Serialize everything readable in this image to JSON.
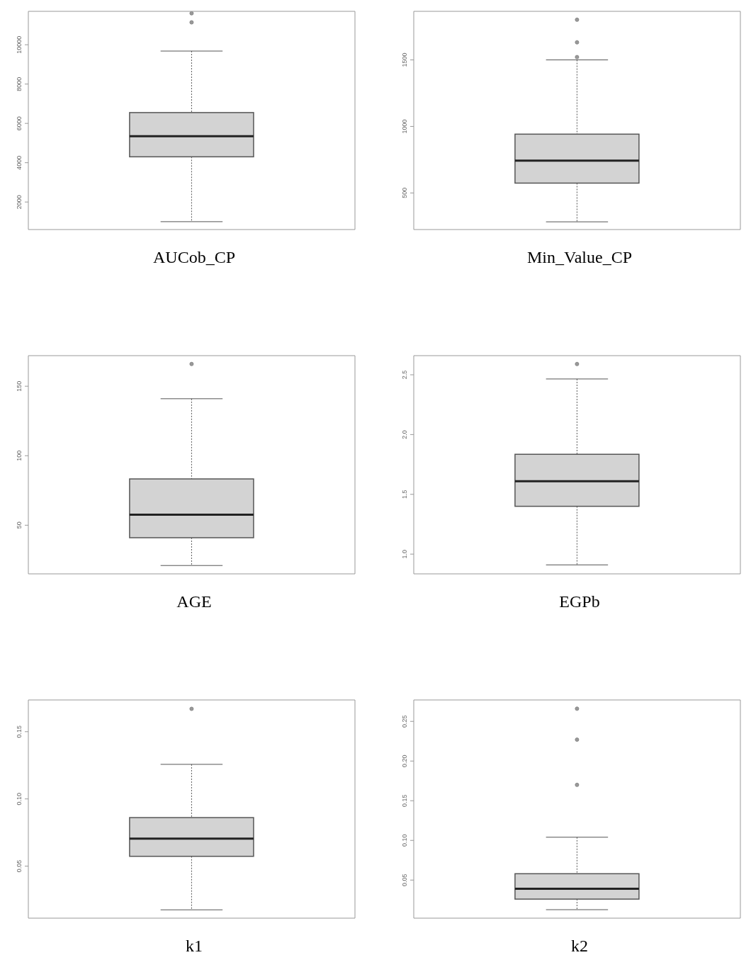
{
  "chart_data": [
    {
      "type": "box",
      "xlabel": "AUCob_CP",
      "categories": [
        null
      ],
      "color": "#d3d3d3",
      "tick_labels": "y",
      "ylim": [
        600,
        11700
      ],
      "yticks": [
        2000,
        4000,
        6000,
        8000,
        10000
      ],
      "boxes": [
        {
          "low": 1000,
          "q1": 4300,
          "median": 5350,
          "q3": 6550,
          "high": 9680,
          "outliers": [
            11140,
            11600
          ]
        }
      ]
    },
    {
      "type": "box",
      "xlabel": "Min_Value_CP",
      "categories": [
        null
      ],
      "color": "#d3d3d3",
      "tick_labels": "y",
      "ylim": [
        225,
        1865
      ],
      "yticks": [
        500,
        1000,
        1500
      ],
      "boxes": [
        {
          "low": 283,
          "q1": 574,
          "median": 743,
          "q3": 942,
          "high": 1500,
          "outliers": [
            1521,
            1632,
            1802
          ]
        }
      ]
    },
    {
      "type": "box",
      "xlabel": "AGE",
      "categories": [
        null
      ],
      "color": "#d3d3d3",
      "tick_labels": "y",
      "ylim": [
        15,
        172
      ],
      "yticks": [
        50,
        100,
        150
      ],
      "boxes": [
        {
          "low": 21,
          "q1": 41,
          "median": 57.6,
          "q3": 83.3,
          "high": 141,
          "outliers": [
            166
          ]
        }
      ]
    },
    {
      "type": "box",
      "xlabel": "EGPb",
      "categories": [
        null
      ],
      "color": "#d3d3d3",
      "tick_labels": "y",
      "ylim": [
        0.835,
        2.66
      ],
      "yticks": [
        {
          "value": 1,
          "label": "1.0"
        },
        1.5,
        {
          "value": 2,
          "label": "2.0"
        },
        2.5
      ],
      "boxes": [
        {
          "low": 0.91,
          "q1": 1.4,
          "median": 1.61,
          "q3": 1.835,
          "high": 2.465,
          "outliers": [
            2.59
          ]
        }
      ]
    },
    {
      "type": "box",
      "xlabel": "k1",
      "categories": [
        null
      ],
      "color": "#d3d3d3",
      "tick_labels": "y",
      "ylim": [
        0.0113,
        0.1736
      ],
      "yticks": [
        0.05,
        {
          "value": 0.1,
          "label": "0.10"
        },
        0.15
      ],
      "boxes": [
        {
          "low": 0.0175,
          "q1": 0.0573,
          "median": 0.0704,
          "q3": 0.0861,
          "high": 0.1257,
          "outliers": [
            0.167
          ]
        }
      ]
    },
    {
      "type": "box",
      "xlabel": "k2",
      "categories": [
        null
      ],
      "color": "#d3d3d3",
      "tick_labels": "y",
      "ylim": [
        0.002,
        0.277
      ],
      "yticks": [
        0.05,
        {
          "value": 0.1,
          "label": "0.10"
        },
        0.15,
        {
          "value": 0.2,
          "label": "0.20"
        },
        0.25
      ],
      "boxes": [
        {
          "low": 0.0127,
          "q1": 0.026,
          "median": 0.039,
          "q3": 0.058,
          "high": 0.104,
          "outliers": [
            0.17,
            0.227,
            0.266
          ]
        }
      ]
    }
  ]
}
